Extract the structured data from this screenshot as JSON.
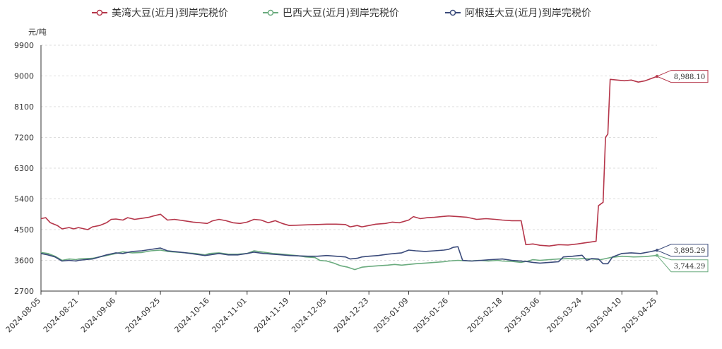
{
  "chart_data": {
    "type": "line",
    "title": "",
    "xlabel": "",
    "ylabel": "元/吨",
    "ylim": [
      2700,
      9900
    ],
    "yticks": [
      2700,
      3600,
      4500,
      5400,
      6300,
      7200,
      8100,
      9000,
      9900
    ],
    "ytick_labels": [
      "2700",
      "3600",
      "4500",
      "5400",
      "6300",
      "7200",
      "8100",
      "9000",
      "9900"
    ],
    "xrange": [
      "2024-08-05",
      "2025-04-25"
    ],
    "xticks": [
      "2024-08-05",
      "2024-08-21",
      "2024-09-06",
      "2024-09-25",
      "2024-10-16",
      "2024-11-01",
      "2024-11-19",
      "2024-12-05",
      "2024-12-23",
      "2025-01-09",
      "2025-01-26",
      "2025-02-18",
      "2025-03-06",
      "2025-03-24",
      "2025-04-10",
      "2025-04-25"
    ],
    "grid": "horizontal dashed",
    "legend_position": "top",
    "series": [
      {
        "name": "美湾大豆(近月)到岸完税价",
        "color": "#b5364a",
        "end_label": "8,988.10",
        "points": [
          [
            "2024-08-05",
            4820
          ],
          [
            "2024-08-07",
            4850
          ],
          [
            "2024-08-09",
            4700
          ],
          [
            "2024-08-12",
            4620
          ],
          [
            "2024-08-14",
            4520
          ],
          [
            "2024-08-17",
            4560
          ],
          [
            "2024-08-19",
            4520
          ],
          [
            "2024-08-21",
            4560
          ],
          [
            "2024-08-23",
            4530
          ],
          [
            "2024-08-25",
            4500
          ],
          [
            "2024-08-27",
            4580
          ],
          [
            "2024-08-30",
            4620
          ],
          [
            "2024-09-02",
            4700
          ],
          [
            "2024-09-04",
            4800
          ],
          [
            "2024-09-06",
            4810
          ],
          [
            "2024-09-09",
            4780
          ],
          [
            "2024-09-11",
            4850
          ],
          [
            "2024-09-14",
            4800
          ],
          [
            "2024-09-17",
            4830
          ],
          [
            "2024-09-20",
            4860
          ],
          [
            "2024-09-22",
            4900
          ],
          [
            "2024-09-25",
            4950
          ],
          [
            "2024-09-28",
            4780
          ],
          [
            "2024-10-01",
            4800
          ],
          [
            "2024-10-05",
            4760
          ],
          [
            "2024-10-09",
            4720
          ],
          [
            "2024-10-12",
            4700
          ],
          [
            "2024-10-15",
            4680
          ],
          [
            "2024-10-17",
            4750
          ],
          [
            "2024-10-20",
            4800
          ],
          [
            "2024-10-23",
            4760
          ],
          [
            "2024-10-26",
            4700
          ],
          [
            "2024-10-29",
            4680
          ],
          [
            "2024-11-01",
            4720
          ],
          [
            "2024-11-04",
            4800
          ],
          [
            "2024-11-07",
            4780
          ],
          [
            "2024-11-10",
            4700
          ],
          [
            "2024-11-13",
            4760
          ],
          [
            "2024-11-16",
            4680
          ],
          [
            "2024-11-19",
            4620
          ],
          [
            "2024-11-23",
            4630
          ],
          [
            "2024-11-27",
            4640
          ],
          [
            "2024-12-01",
            4650
          ],
          [
            "2024-12-05",
            4660
          ],
          [
            "2024-12-09",
            4660
          ],
          [
            "2024-12-13",
            4650
          ],
          [
            "2024-12-15",
            4580
          ],
          [
            "2024-12-18",
            4620
          ],
          [
            "2024-12-20",
            4580
          ],
          [
            "2024-12-23",
            4620
          ],
          [
            "2024-12-26",
            4660
          ],
          [
            "2024-12-30",
            4680
          ],
          [
            "2025-01-02",
            4720
          ],
          [
            "2025-01-05",
            4700
          ],
          [
            "2025-01-09",
            4780
          ],
          [
            "2025-01-11",
            4880
          ],
          [
            "2025-01-14",
            4820
          ],
          [
            "2025-01-17",
            4850
          ],
          [
            "2025-01-20",
            4860
          ],
          [
            "2025-01-23",
            4880
          ],
          [
            "2025-01-26",
            4900
          ],
          [
            "2025-01-30",
            4880
          ],
          [
            "2025-02-03",
            4860
          ],
          [
            "2025-02-07",
            4800
          ],
          [
            "2025-02-11",
            4820
          ],
          [
            "2025-02-15",
            4800
          ],
          [
            "2025-02-18",
            4780
          ],
          [
            "2025-02-22",
            4760
          ],
          [
            "2025-02-26",
            4760
          ],
          [
            "2025-02-28",
            4060
          ],
          [
            "2025-03-03",
            4080
          ],
          [
            "2025-03-06",
            4040
          ],
          [
            "2025-03-10",
            4020
          ],
          [
            "2025-03-14",
            4060
          ],
          [
            "2025-03-18",
            4050
          ],
          [
            "2025-03-22",
            4080
          ],
          [
            "2025-03-24",
            4100
          ],
          [
            "2025-03-28",
            4140
          ],
          [
            "2025-03-30",
            4160
          ],
          [
            "2025-03-31",
            5200
          ],
          [
            "2025-04-02",
            5300
          ],
          [
            "2025-04-03",
            7200
          ],
          [
            "2025-04-04",
            7300
          ],
          [
            "2025-04-05",
            8900
          ],
          [
            "2025-04-08",
            8880
          ],
          [
            "2025-04-11",
            8860
          ],
          [
            "2025-04-14",
            8880
          ],
          [
            "2025-04-17",
            8820
          ],
          [
            "2025-04-20",
            8860
          ],
          [
            "2025-04-25",
            8988.1
          ]
        ]
      },
      {
        "name": "巴西大豆(近月)到岸完税价",
        "color": "#6aab7e",
        "end_label": "3,744.29",
        "points": [
          [
            "2024-08-05",
            3830
          ],
          [
            "2024-08-08",
            3800
          ],
          [
            "2024-08-11",
            3720
          ],
          [
            "2024-08-14",
            3600
          ],
          [
            "2024-08-17",
            3640
          ],
          [
            "2024-08-20",
            3620
          ],
          [
            "2024-08-21",
            3640
          ],
          [
            "2024-08-24",
            3650
          ],
          [
            "2024-08-27",
            3660
          ],
          [
            "2024-08-30",
            3700
          ],
          [
            "2024-09-02",
            3740
          ],
          [
            "2024-09-06",
            3800
          ],
          [
            "2024-09-09",
            3850
          ],
          [
            "2024-09-13",
            3820
          ],
          [
            "2024-09-17",
            3830
          ],
          [
            "2024-09-21",
            3880
          ],
          [
            "2024-09-25",
            3900
          ],
          [
            "2024-09-28",
            3860
          ],
          [
            "2024-10-02",
            3840
          ],
          [
            "2024-10-06",
            3820
          ],
          [
            "2024-10-10",
            3800
          ],
          [
            "2024-10-14",
            3760
          ],
          [
            "2024-10-16",
            3800
          ],
          [
            "2024-10-20",
            3820
          ],
          [
            "2024-10-24",
            3780
          ],
          [
            "2024-10-28",
            3780
          ],
          [
            "2024-11-01",
            3800
          ],
          [
            "2024-11-04",
            3880
          ],
          [
            "2024-11-08",
            3840
          ],
          [
            "2024-11-12",
            3800
          ],
          [
            "2024-11-16",
            3780
          ],
          [
            "2024-11-19",
            3760
          ],
          [
            "2024-11-22",
            3740
          ],
          [
            "2024-11-26",
            3700
          ],
          [
            "2024-11-30",
            3680
          ],
          [
            "2024-12-02",
            3600
          ],
          [
            "2024-12-05",
            3580
          ],
          [
            "2024-12-08",
            3520
          ],
          [
            "2024-12-11",
            3440
          ],
          [
            "2024-12-14",
            3400
          ],
          [
            "2024-12-17",
            3330
          ],
          [
            "2024-12-20",
            3400
          ],
          [
            "2024-12-23",
            3420
          ],
          [
            "2024-12-27",
            3440
          ],
          [
            "2024-12-31",
            3460
          ],
          [
            "2025-01-03",
            3480
          ],
          [
            "2025-01-06",
            3460
          ],
          [
            "2025-01-09",
            3480
          ],
          [
            "2025-01-12",
            3500
          ],
          [
            "2025-01-16",
            3520
          ],
          [
            "2025-01-20",
            3540
          ],
          [
            "2025-01-24",
            3560
          ],
          [
            "2025-01-26",
            3580
          ],
          [
            "2025-01-30",
            3600
          ],
          [
            "2025-02-04",
            3580
          ],
          [
            "2025-02-08",
            3600
          ],
          [
            "2025-02-12",
            3580
          ],
          [
            "2025-02-16",
            3600
          ],
          [
            "2025-02-18",
            3580
          ],
          [
            "2025-02-22",
            3570
          ],
          [
            "2025-02-26",
            3540
          ],
          [
            "2025-03-01",
            3580
          ],
          [
            "2025-03-03",
            3620
          ],
          [
            "2025-03-06",
            3600
          ],
          [
            "2025-03-10",
            3620
          ],
          [
            "2025-03-14",
            3640
          ],
          [
            "2025-03-18",
            3650
          ],
          [
            "2025-03-22",
            3640
          ],
          [
            "2025-03-24",
            3650
          ],
          [
            "2025-03-28",
            3640
          ],
          [
            "2025-04-01",
            3620
          ],
          [
            "2025-04-05",
            3680
          ],
          [
            "2025-04-10",
            3720
          ],
          [
            "2025-04-15",
            3700
          ],
          [
            "2025-04-20",
            3710
          ],
          [
            "2025-04-25",
            3744.29
          ]
        ]
      },
      {
        "name": "阿根廷大豆(近月)到岸完税价",
        "color": "#3a4a7a",
        "end_label": "3,895.29",
        "points": [
          [
            "2024-08-05",
            3800
          ],
          [
            "2024-08-08",
            3760
          ],
          [
            "2024-08-11",
            3700
          ],
          [
            "2024-08-14",
            3580
          ],
          [
            "2024-08-17",
            3600
          ],
          [
            "2024-08-20",
            3580
          ],
          [
            "2024-08-21",
            3600
          ],
          [
            "2024-08-24",
            3620
          ],
          [
            "2024-08-27",
            3640
          ],
          [
            "2024-08-30",
            3700
          ],
          [
            "2024-09-02",
            3760
          ],
          [
            "2024-09-06",
            3820
          ],
          [
            "2024-09-09",
            3800
          ],
          [
            "2024-09-13",
            3860
          ],
          [
            "2024-09-17",
            3880
          ],
          [
            "2024-09-21",
            3920
          ],
          [
            "2024-09-25",
            3960
          ],
          [
            "2024-09-28",
            3880
          ],
          [
            "2024-10-02",
            3850
          ],
          [
            "2024-10-06",
            3820
          ],
          [
            "2024-10-10",
            3780
          ],
          [
            "2024-10-14",
            3740
          ],
          [
            "2024-10-16",
            3760
          ],
          [
            "2024-10-20",
            3800
          ],
          [
            "2024-10-24",
            3760
          ],
          [
            "2024-10-28",
            3760
          ],
          [
            "2024-11-01",
            3800
          ],
          [
            "2024-11-04",
            3840
          ],
          [
            "2024-11-08",
            3800
          ],
          [
            "2024-11-12",
            3780
          ],
          [
            "2024-11-16",
            3760
          ],
          [
            "2024-11-19",
            3740
          ],
          [
            "2024-11-23",
            3730
          ],
          [
            "2024-11-27",
            3720
          ],
          [
            "2024-12-01",
            3720
          ],
          [
            "2024-12-05",
            3740
          ],
          [
            "2024-12-09",
            3720
          ],
          [
            "2024-12-13",
            3700
          ],
          [
            "2024-12-15",
            3640
          ],
          [
            "2024-12-18",
            3660
          ],
          [
            "2024-12-20",
            3700
          ],
          [
            "2024-12-23",
            3720
          ],
          [
            "2024-12-27",
            3740
          ],
          [
            "2024-12-31",
            3780
          ],
          [
            "2025-01-03",
            3800
          ],
          [
            "2025-01-06",
            3820
          ],
          [
            "2025-01-09",
            3900
          ],
          [
            "2025-01-12",
            3880
          ],
          [
            "2025-01-16",
            3860
          ],
          [
            "2025-01-20",
            3880
          ],
          [
            "2025-01-24",
            3900
          ],
          [
            "2025-01-26",
            3920
          ],
          [
            "2025-01-28",
            3980
          ],
          [
            "2025-01-30",
            4000
          ],
          [
            "2025-02-01",
            3600
          ],
          [
            "2025-02-05",
            3580
          ],
          [
            "2025-02-09",
            3600
          ],
          [
            "2025-02-13",
            3620
          ],
          [
            "2025-02-18",
            3640
          ],
          [
            "2025-02-22",
            3600
          ],
          [
            "2025-02-26",
            3580
          ],
          [
            "2025-03-01",
            3560
          ],
          [
            "2025-03-03",
            3540
          ],
          [
            "2025-03-06",
            3520
          ],
          [
            "2025-03-10",
            3540
          ],
          [
            "2025-03-14",
            3560
          ],
          [
            "2025-03-16",
            3700
          ],
          [
            "2025-03-20",
            3720
          ],
          [
            "2025-03-24",
            3750
          ],
          [
            "2025-03-26",
            3600
          ],
          [
            "2025-03-28",
            3650
          ],
          [
            "2025-03-31",
            3640
          ],
          [
            "2025-04-02",
            3500
          ],
          [
            "2025-04-04",
            3500
          ],
          [
            "2025-04-06",
            3700
          ],
          [
            "2025-04-10",
            3800
          ],
          [
            "2025-04-14",
            3820
          ],
          [
            "2025-04-18",
            3800
          ],
          [
            "2025-04-22",
            3850
          ],
          [
            "2025-04-25",
            3895.29
          ]
        ]
      }
    ]
  }
}
